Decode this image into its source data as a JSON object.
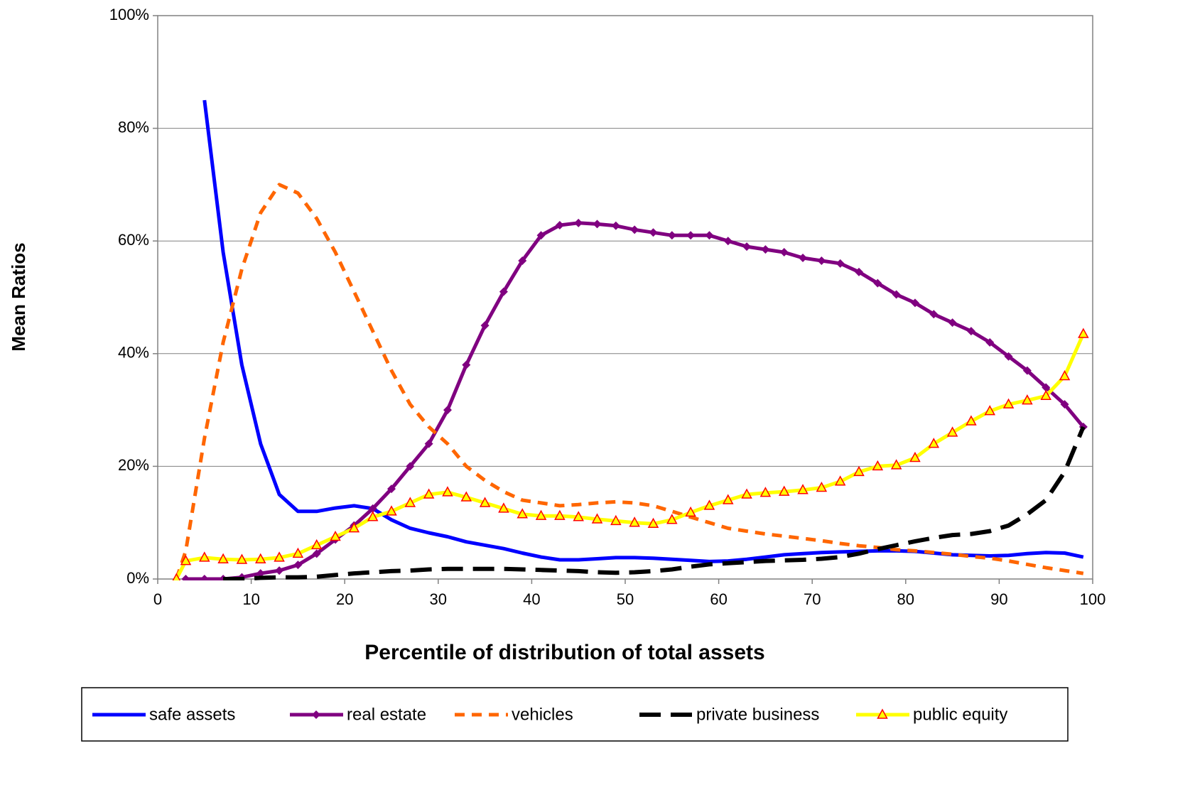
{
  "chart_data": {
    "type": "line",
    "x_label": "Percentile of distribution of total assets",
    "y_label": "Mean Ratios",
    "xlim": [
      0,
      100
    ],
    "xticks": [
      0,
      10,
      20,
      30,
      40,
      50,
      60,
      70,
      80,
      90,
      100
    ],
    "ylim": [
      0,
      100
    ],
    "yticks": [
      {
        "value": 0,
        "label": "0%"
      },
      {
        "value": 20,
        "label": "20%"
      },
      {
        "value": 40,
        "label": "40%"
      },
      {
        "value": 60,
        "label": "60%"
      },
      {
        "value": 80,
        "label": "80%"
      },
      {
        "value": 100,
        "label": "100%"
      }
    ],
    "grid": true,
    "legend": "bottom",
    "x": [
      2,
      3,
      5,
      7,
      9,
      11,
      13,
      15,
      17,
      19,
      21,
      23,
      25,
      27,
      29,
      31,
      33,
      35,
      37,
      39,
      41,
      43,
      45,
      47,
      49,
      51,
      53,
      55,
      57,
      59,
      61,
      63,
      65,
      67,
      69,
      71,
      73,
      75,
      77,
      79,
      81,
      83,
      85,
      87,
      89,
      91,
      93,
      95,
      97,
      99
    ],
    "series": [
      {
        "name": "safe assets",
        "color": "#0000ff",
        "style": "solid",
        "marker": "none",
        "values": [
          null,
          null,
          85,
          58,
          38,
          24,
          15,
          12,
          12,
          12.6,
          13,
          12.5,
          10.5,
          9,
          8.2,
          7.5,
          6.6,
          6,
          5.4,
          4.6,
          3.9,
          3.4,
          3.4,
          3.6,
          3.8,
          3.8,
          3.7,
          3.5,
          3.3,
          3.1,
          3.2,
          3.5,
          3.9,
          4.3,
          4.5,
          4.7,
          4.8,
          4.9,
          5,
          5,
          4.9,
          4.6,
          4.3,
          4.2,
          4.1,
          4.2,
          4.5,
          4.7,
          4.6,
          3.9
        ]
      },
      {
        "name": "real estate",
        "color": "#800080",
        "style": "solid",
        "marker": "diamond",
        "values": [
          null,
          0,
          0,
          0,
          0.3,
          1,
          1.5,
          2.5,
          4.5,
          7,
          9.5,
          12.5,
          16,
          20,
          24,
          30,
          38,
          45,
          51,
          56.5,
          61,
          62.8,
          63.2,
          63,
          62.7,
          62,
          61.5,
          61,
          61,
          61,
          60,
          59,
          58.5,
          58,
          57,
          56.5,
          56,
          54.5,
          52.5,
          50.5,
          49,
          47,
          45.5,
          44,
          42,
          39.5,
          37,
          34,
          31,
          27
        ]
      },
      {
        "name": "vehicles",
        "color": "#ff6600",
        "style": "dashed",
        "marker": "none",
        "values": [
          0,
          5,
          25,
          42,
          55,
          65,
          70,
          68.5,
          64,
          58,
          51,
          44,
          37,
          31,
          27,
          24,
          20,
          17.5,
          15.5,
          14,
          13.5,
          13,
          13.2,
          13.5,
          13.7,
          13.5,
          13,
          12,
          11,
          10,
          9,
          8.5,
          8,
          7.6,
          7.2,
          6.8,
          6.3,
          5.9,
          5.6,
          5.2,
          5,
          4.7,
          4.4,
          4,
          3.7,
          3.2,
          2.6,
          2,
          1.5,
          1
        ]
      },
      {
        "name": "private business",
        "color": "#000000",
        "style": "longdash",
        "marker": "none",
        "values": [
          null,
          null,
          null,
          0,
          0,
          0.2,
          0.3,
          0.3,
          0.4,
          0.7,
          1,
          1.2,
          1.4,
          1.5,
          1.7,
          1.8,
          1.8,
          1.8,
          1.8,
          1.7,
          1.6,
          1.5,
          1.4,
          1.2,
          1.1,
          1.2,
          1.4,
          1.7,
          2.2,
          2.6,
          2.8,
          3,
          3.2,
          3.3,
          3.4,
          3.6,
          3.9,
          4.5,
          5.3,
          6,
          6.7,
          7.3,
          7.8,
          8,
          8.5,
          9.5,
          11.5,
          14,
          19,
          27
        ]
      },
      {
        "name": "public equity",
        "color": "#ffff00",
        "style": "solid",
        "marker": "triangle",
        "values": [
          0,
          3.2,
          3.8,
          3.5,
          3.4,
          3.5,
          3.8,
          4.5,
          6,
          7.5,
          9,
          11,
          12,
          13.5,
          15,
          15.4,
          14.5,
          13.5,
          12.5,
          11.5,
          11.2,
          11.2,
          11,
          10.6,
          10.3,
          10,
          9.8,
          10.5,
          11.8,
          13,
          14,
          15,
          15.3,
          15.5,
          15.8,
          16.2,
          17.3,
          19,
          20,
          20.2,
          21.5,
          24,
          26,
          28,
          29.8,
          31,
          31.7,
          32.5,
          36,
          43.5
        ]
      }
    ]
  }
}
